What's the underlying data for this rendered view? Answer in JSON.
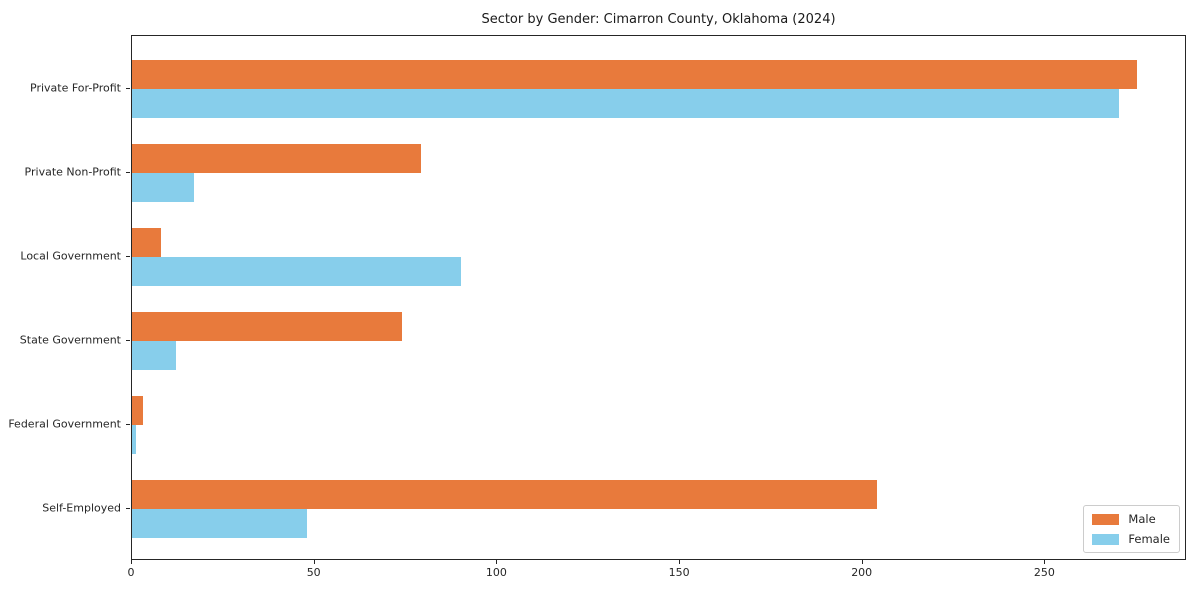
{
  "chart_data": {
    "type": "bar",
    "orientation": "horizontal",
    "title": "Sector by Gender: Cimarron County, Oklahoma (2024)",
    "categories": [
      "Private For-Profit",
      "Private Non-Profit",
      "Local Government",
      "State Government",
      "Federal Government",
      "Self-Employed"
    ],
    "series": [
      {
        "name": "Male",
        "color": "#e87a3c",
        "values": [
          275,
          79,
          8,
          74,
          3,
          204
        ]
      },
      {
        "name": "Female",
        "color": "#87ceeb",
        "values": [
          270,
          17,
          90,
          12,
          1,
          48
        ]
      }
    ],
    "xlabel": "",
    "ylabel": "",
    "xlim": [
      0,
      288.75
    ],
    "xticks": [
      0,
      50,
      100,
      150,
      200,
      250
    ],
    "grid": false,
    "legend_position": "lower right",
    "axis_color": "#262626"
  }
}
